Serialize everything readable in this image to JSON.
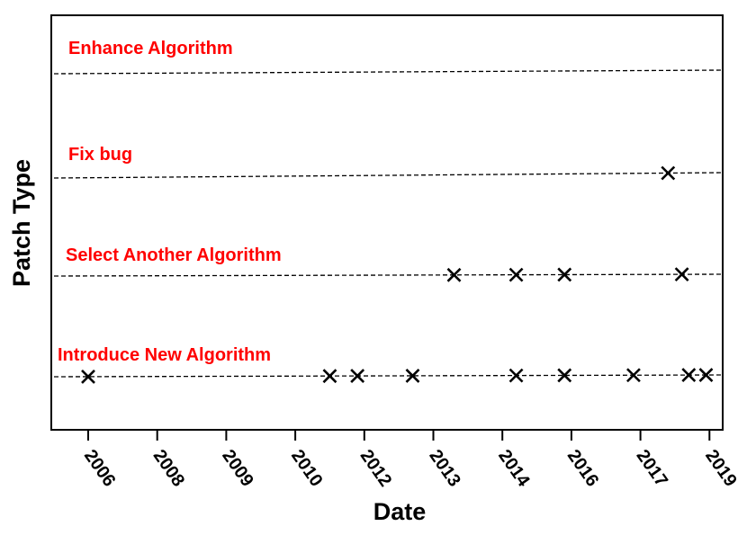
{
  "chart_data": {
    "type": "scatter",
    "title": "",
    "xlabel": "Date",
    "ylabel": "Patch Type",
    "x_tick_labels": [
      "2006",
      "2008",
      "2009",
      "2010",
      "2012",
      "2013",
      "2014",
      "2016",
      "2017",
      "2019"
    ],
    "category_color": "#ff0000",
    "marker": "x",
    "grid": false,
    "series": [
      {
        "category": "Enhance Algorithm",
        "points": []
      },
      {
        "category": "Fix bug",
        "points": [
          8.4
        ]
      },
      {
        "category": "Select Another Algorithm",
        "points": [
          5.3,
          6.2,
          6.9,
          8.6
        ]
      },
      {
        "category": "Introduce New Algorithm",
        "points": [
          0.0,
          3.5,
          3.9,
          4.7,
          6.2,
          6.9,
          7.9,
          8.7,
          8.95
        ]
      }
    ]
  }
}
